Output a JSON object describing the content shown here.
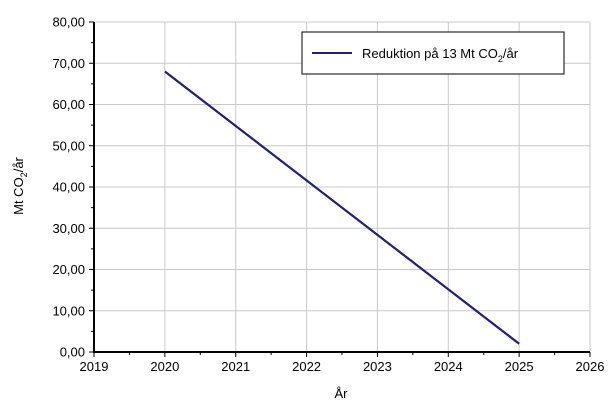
{
  "chart_data": {
    "type": "line",
    "title": "",
    "xlabel": "År",
    "ylabel": {
      "prefix": "Mt CO",
      "sub": "2",
      "suffix": "/år"
    },
    "xlim": [
      2019,
      2026
    ],
    "ylim": [
      0,
      80
    ],
    "x_ticks": [
      "2019",
      "2020",
      "2021",
      "2022",
      "2023",
      "2024",
      "2025",
      "2026"
    ],
    "y_ticks": [
      "0,00",
      "10,00",
      "20,00",
      "30,00",
      "40,00",
      "50,00",
      "60,00",
      "70,00",
      "80,00"
    ],
    "grid": true,
    "legend_position": "top-right",
    "series": [
      {
        "name": {
          "prefix": "Reduktion på 13 Mt CO",
          "sub": "2",
          "suffix": "/år"
        },
        "color": "#1f1f7a",
        "x": [
          2020,
          2025
        ],
        "y": [
          68,
          2
        ]
      }
    ]
  }
}
